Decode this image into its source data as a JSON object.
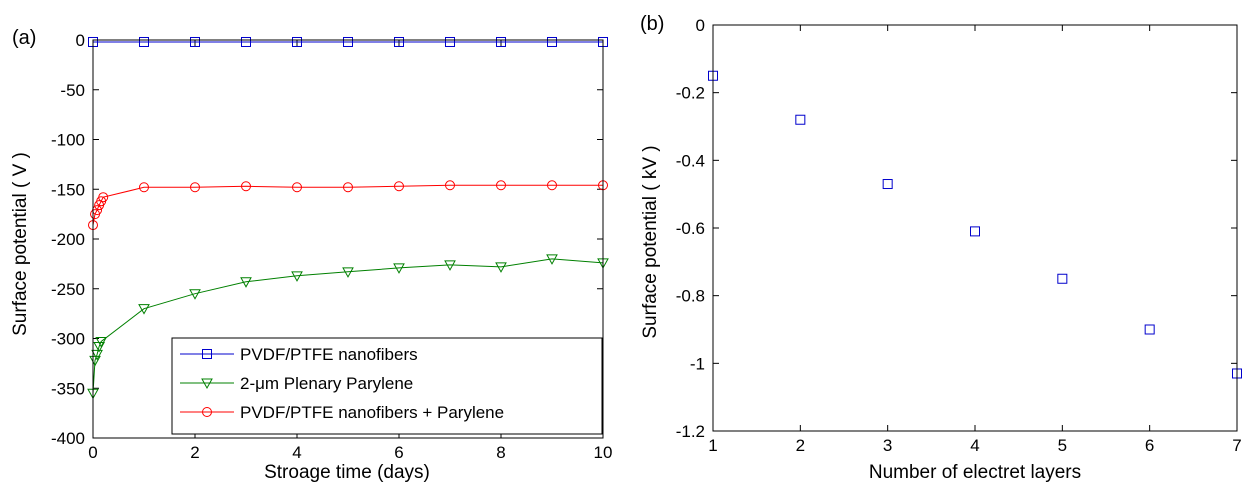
{
  "chart_data": [
    {
      "type": "line",
      "panel_label": "(a)",
      "xlabel": "Stroage time (days)",
      "ylabel": "Surface potential ( V )",
      "xlim": [
        0,
        10
      ],
      "ylim": [
        -400,
        0
      ],
      "xticks": [
        0,
        2,
        4,
        6,
        8,
        10
      ],
      "yticks": [
        0,
        -50,
        -100,
        -150,
        -200,
        -250,
        -300,
        -350,
        -400
      ],
      "grid": false,
      "legend_position": "bottom-right",
      "series": [
        {
          "name": "PVDF/PTFE nanofibers",
          "color": "#0000cc",
          "marker": "square",
          "x": [
            0,
            1,
            2,
            3,
            4,
            5,
            6,
            7,
            8,
            9,
            10
          ],
          "y": [
            -2,
            -2,
            -2,
            -2,
            -2,
            -2,
            -2,
            -2,
            -2,
            -2,
            -2
          ]
        },
        {
          "name": "2-μm Plenary Parylene",
          "color": "#008000",
          "marker": "triangle-down",
          "x": [
            0,
            0.04,
            0.08,
            0.12,
            0.16,
            1,
            2,
            3,
            4,
            5,
            6,
            7,
            8,
            9,
            10
          ],
          "y": [
            -355,
            -322,
            -316,
            -308,
            -303,
            -270,
            -255,
            -243,
            -237,
            -233,
            -229,
            -226,
            -228,
            -220,
            -224
          ]
        },
        {
          "name": "PVDF/PTFE nanofibers + Parylene",
          "color": "#ff0000",
          "marker": "circle",
          "x": [
            0,
            0.04,
            0.08,
            0.12,
            0.16,
            0.2,
            1,
            2,
            3,
            4,
            5,
            6,
            7,
            8,
            9,
            10
          ],
          "y": [
            -186,
            -175,
            -171,
            -166,
            -162,
            -158,
            -148,
            -148,
            -147,
            -148,
            -148,
            -147,
            -146,
            -146,
            -146,
            -146
          ]
        }
      ]
    },
    {
      "type": "scatter",
      "panel_label": "(b)",
      "xlabel": "Number of electret layers",
      "ylabel": "Surface potential ( kV )",
      "xlim": [
        1,
        7
      ],
      "ylim": [
        -1.2,
        0
      ],
      "xticks": [
        1,
        2,
        3,
        4,
        5,
        6,
        7
      ],
      "yticks": [
        "0",
        "-0.2",
        "-0.4",
        "-0.6",
        "-0.8",
        "-1",
        "-1.2"
      ],
      "grid": false,
      "series": [
        {
          "color": "#0000cc",
          "marker": "square",
          "x": [
            1,
            2,
            3,
            4,
            5,
            6,
            7
          ],
          "y": [
            -0.15,
            -0.28,
            -0.47,
            -0.61,
            -0.75,
            -0.9,
            -1.03
          ]
        }
      ]
    }
  ]
}
